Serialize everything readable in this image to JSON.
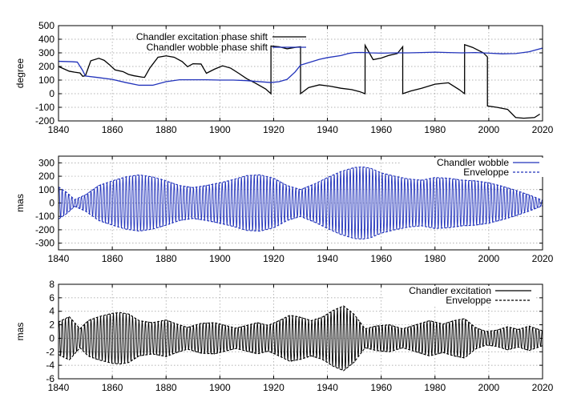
{
  "chart_data": [
    {
      "type": "line",
      "ylabel": "degree",
      "xlim": [
        1840,
        2020
      ],
      "ylim": [
        -200,
        500
      ],
      "xticks": [
        1840,
        1860,
        1880,
        1900,
        1920,
        1940,
        1960,
        1980,
        2000,
        2020
      ],
      "yticks": [
        -200,
        -100,
        0,
        100,
        200,
        300,
        400,
        500
      ],
      "grid": true,
      "legend": "top-center",
      "series": [
        {
          "name": "Chandler excitation phase shift",
          "color": "#000000",
          "x": [
            1840,
            1844,
            1846,
            1848,
            1849,
            1850,
            1852,
            1855,
            1857,
            1859,
            1861,
            1864,
            1866,
            1868,
            1871,
            1872,
            1874,
            1877,
            1880,
            1883,
            1886,
            1888,
            1890,
            1893,
            1895,
            1898,
            1901,
            1904,
            1907,
            1910,
            1913,
            1917,
            1919,
            1919.01,
            1922,
            1925,
            1928,
            1930,
            1930.01,
            1933,
            1937,
            1941,
            1945,
            1949,
            1952,
            1954,
            1954.01,
            1957,
            1960,
            1963,
            1966,
            1968,
            1968.01,
            1971,
            1975,
            1980,
            1985,
            1989,
            1991,
            1991.01,
            1994,
            1998,
            1999.5,
            1999.51,
            2003,
            2007,
            2010,
            2013,
            2017,
            2019
          ],
          "values": [
            200,
            165,
            158,
            152,
            128,
            132,
            242,
            260,
            245,
            212,
            175,
            162,
            142,
            132,
            122,
            120,
            190,
            268,
            278,
            268,
            236,
            198,
            220,
            218,
            150,
            180,
            205,
            188,
            150,
            110,
            80,
            35,
            0,
            350,
            345,
            330,
            340,
            345,
            0,
            45,
            65,
            55,
            40,
            30,
            15,
            0,
            355,
            250,
            262,
            282,
            295,
            345,
            0,
            20,
            40,
            70,
            80,
            30,
            0,
            360,
            340,
            300,
            270,
            -90,
            -100,
            -115,
            -175,
            -180,
            -175,
            -150
          ]
        },
        {
          "name": "Chandler wobble phase shift",
          "color": "#2233bb",
          "x": [
            1840,
            1845,
            1847,
            1849,
            1850,
            1855,
            1860,
            1865,
            1870,
            1875,
            1880,
            1885,
            1890,
            1895,
            1900,
            1905,
            1910,
            1915,
            1919,
            1922,
            1925,
            1928,
            1930,
            1933,
            1937,
            1940,
            1945,
            1948,
            1950,
            1953,
            1956,
            1960,
            1965,
            1970,
            1975,
            1980,
            1985,
            1990,
            1995,
            2000,
            2005,
            2010,
            2015,
            2020
          ],
          "values": [
            238,
            235,
            232,
            170,
            130,
            118,
            105,
            82,
            62,
            62,
            88,
            102,
            102,
            102,
            100,
            100,
            96,
            88,
            82,
            88,
            105,
            160,
            210,
            228,
            252,
            265,
            280,
            296,
            302,
            303,
            300,
            298,
            300,
            300,
            302,
            305,
            302,
            300,
            302,
            298,
            293,
            295,
            308,
            335
          ]
        }
      ]
    },
    {
      "type": "line",
      "ylabel": "mas",
      "xlim": [
        1840,
        2020
      ],
      "ylim": [
        -350,
        350
      ],
      "xticks": [
        1840,
        1860,
        1880,
        1900,
        1920,
        1940,
        1960,
        1980,
        2000,
        2020
      ],
      "yticks": [
        -300,
        -200,
        -100,
        0,
        100,
        200,
        300
      ],
      "grid": true,
      "legend": "top-right",
      "series": [
        {
          "name": "Chandler wobble",
          "color": "#2233bb",
          "period_years": 1.19,
          "envelope_x": [
            1840,
            1843,
            1846,
            1850,
            1855,
            1860,
            1865,
            1870,
            1875,
            1880,
            1885,
            1890,
            1895,
            1900,
            1905,
            1910,
            1915,
            1920,
            1925,
            1930,
            1935,
            1940,
            1945,
            1950,
            1953,
            1956,
            1960,
            1965,
            1970,
            1975,
            1980,
            1985,
            1990,
            1995,
            2000,
            2005,
            2010,
            2015,
            2020
          ],
          "envelope_values": [
            120,
            80,
            25,
            60,
            130,
            165,
            195,
            210,
            195,
            165,
            130,
            115,
            130,
            150,
            175,
            205,
            210,
            185,
            130,
            100,
            140,
            190,
            235,
            265,
            270,
            260,
            225,
            200,
            180,
            170,
            190,
            185,
            170,
            165,
            150,
            125,
            95,
            60,
            20
          ]
        },
        {
          "name": "Enveloppe",
          "color": "#2233bb",
          "dashed": true
        }
      ]
    },
    {
      "type": "line",
      "ylabel": "mas",
      "xlim": [
        1840,
        2020
      ],
      "ylim": [
        -6,
        8
      ],
      "xticks": [
        1840,
        1860,
        1880,
        1900,
        1920,
        1940,
        1960,
        1980,
        2000,
        2020
      ],
      "yticks": [
        -6,
        -4,
        -2,
        0,
        2,
        4,
        6,
        8
      ],
      "grid": true,
      "legend": "top-right",
      "series": [
        {
          "name": "Chandler excitation",
          "color": "#000000",
          "period_years": 1.19,
          "envelope_x": [
            1840,
            1844,
            1848,
            1851,
            1855,
            1860,
            1863,
            1866,
            1870,
            1875,
            1880,
            1884,
            1888,
            1893,
            1898,
            1902,
            1906,
            1910,
            1914,
            1918,
            1922,
            1926,
            1930,
            1934,
            1938,
            1942,
            1946,
            1950,
            1954,
            1958,
            1963,
            1968,
            1973,
            1978,
            1983,
            1987,
            1991,
            1995,
            1999,
            2003,
            2007,
            2011,
            2015,
            2020
          ],
          "envelope_values": [
            2.4,
            3.2,
            1.4,
            2.6,
            3.2,
            3.7,
            3.8,
            3.6,
            2.6,
            2.3,
            2.7,
            2.1,
            1.6,
            2.2,
            2.3,
            1.9,
            1.5,
            1.9,
            2.3,
            1.9,
            2.6,
            3.4,
            3.1,
            2.6,
            3.1,
            4.1,
            4.8,
            3.5,
            1.4,
            1.8,
            2.0,
            1.4,
            2.0,
            2.6,
            2.1,
            2.6,
            2.9,
            1.6,
            1.0,
            1.2,
            1.7,
            1.3,
            1.8,
            1.1
          ]
        },
        {
          "name": "Enveloppe",
          "color": "#000000",
          "dashed": true
        }
      ]
    }
  ]
}
